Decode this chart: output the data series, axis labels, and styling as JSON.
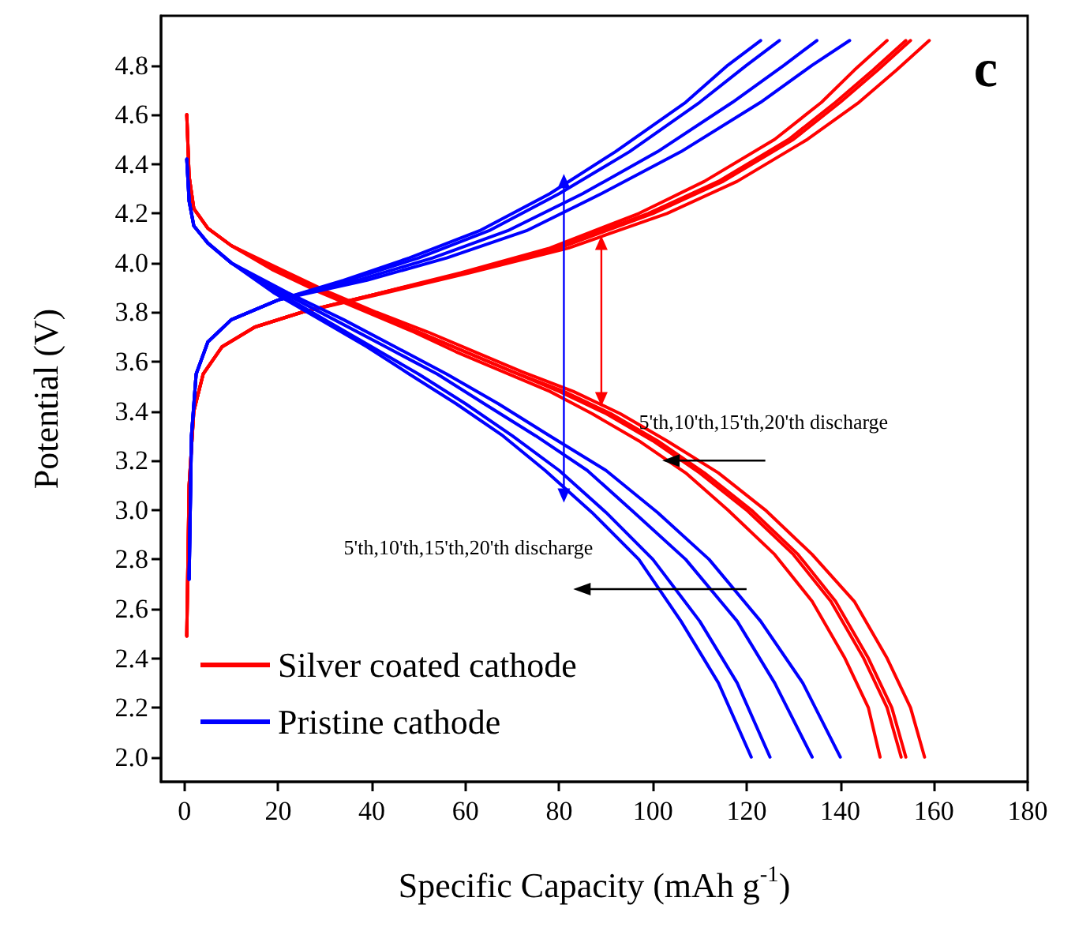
{
  "chart_data": {
    "type": "line",
    "title": "c",
    "xlabel": "Specific Capacity (mAh g$^{-1}$)",
    "ylabel": "Potential (V)",
    "annotations": [
      "5'th,10'th,15'th,20'th discharge",
      "5'th,10'th,15'th,20'th discharge"
    ],
    "xlim": [
      -5,
      180
    ],
    "xticks": [
      0,
      20,
      40,
      60,
      80,
      100,
      120,
      140,
      160,
      180
    ],
    "ylim": [
      1.9,
      5.0
    ],
    "yticks": [
      {
        "value": 2,
        "label": "2.0"
      },
      2.2,
      2.4,
      2.6,
      2.8,
      {
        "value": 3,
        "label": "3.0"
      },
      3.2,
      3.4,
      3.6,
      3.8,
      {
        "value": 4,
        "label": "4.0"
      },
      4.2,
      4.4,
      4.6,
      4.8
    ],
    "grid": false,
    "legend": "bottom left",
    "marker": "none",
    "line_style": "solid",
    "series": [
      {
        "name": "Silver coated cathode",
        "color": "#ff0000",
        "x": [
          0.5,
          1,
          2,
          4,
          8,
          15,
          25,
          40,
          59,
          78,
          97,
          111,
          126,
          136,
          143,
          150
        ],
        "values": [
          2.49,
          3.1,
          3.4,
          3.55,
          3.66,
          3.74,
          3.8,
          3.87,
          3.96,
          4.06,
          4.2,
          4.33,
          4.5,
          4.65,
          4.78,
          4.9
        ]
      },
      {
        "color": "#ff0000",
        "x": [
          0.5,
          1,
          2,
          4,
          8,
          15,
          25,
          40,
          60,
          79,
          99,
          114,
          129,
          139,
          147,
          154
        ],
        "values": [
          2.49,
          3.1,
          3.4,
          3.55,
          3.66,
          3.74,
          3.8,
          3.87,
          3.96,
          4.06,
          4.2,
          4.33,
          4.5,
          4.65,
          4.78,
          4.9
        ]
      },
      {
        "color": "#ff0000",
        "x": [
          0.5,
          1,
          2,
          4,
          8,
          15,
          25,
          40,
          60,
          80,
          100,
          115,
          130,
          140,
          148,
          155
        ],
        "values": [
          2.49,
          3.1,
          3.4,
          3.55,
          3.66,
          3.74,
          3.8,
          3.87,
          3.96,
          4.06,
          4.2,
          4.33,
          4.5,
          4.65,
          4.78,
          4.9
        ]
      },
      {
        "color": "#ff0000",
        "x": [
          0.5,
          1,
          2,
          4,
          8,
          15,
          25,
          41,
          61,
          82,
          103,
          118,
          133,
          144,
          152,
          159
        ],
        "values": [
          2.49,
          3.1,
          3.4,
          3.55,
          3.66,
          3.74,
          3.8,
          3.87,
          3.96,
          4.06,
          4.2,
          4.33,
          4.5,
          4.65,
          4.78,
          4.9
        ]
      },
      {
        "color": "#ff0000",
        "x": [
          0.5,
          1,
          2,
          5,
          10,
          19,
          29,
          39,
          49,
          58,
          68,
          78,
          87,
          97,
          107,
          116,
          126,
          134,
          141,
          146,
          148.5
        ],
        "values": [
          4.6,
          4.35,
          4.22,
          4.14,
          4.07,
          3.97,
          3.88,
          3.8,
          3.72,
          3.64,
          3.56,
          3.48,
          3.39,
          3.28,
          3.15,
          3.0,
          2.82,
          2.63,
          2.4,
          2.2,
          2.0
        ]
      },
      {
        "color": "#ff0000",
        "x": [
          0.5,
          1,
          2,
          5,
          10,
          20,
          30,
          40,
          50,
          60,
          70,
          80,
          90,
          100,
          110,
          120,
          130,
          138,
          145,
          150,
          153
        ],
        "values": [
          4.6,
          4.35,
          4.22,
          4.14,
          4.07,
          3.97,
          3.88,
          3.8,
          3.72,
          3.64,
          3.56,
          3.48,
          3.39,
          3.28,
          3.15,
          3.0,
          2.82,
          2.63,
          2.4,
          2.2,
          2.0
        ]
      },
      {
        "color": "#ff0000",
        "x": [
          0.5,
          1,
          2,
          5,
          10,
          20,
          30,
          40,
          50,
          60,
          70,
          81,
          91,
          101,
          111,
          121,
          131,
          139,
          146,
          151,
          154
        ],
        "values": [
          4.6,
          4.35,
          4.22,
          4.14,
          4.07,
          3.97,
          3.88,
          3.8,
          3.72,
          3.64,
          3.56,
          3.48,
          3.39,
          3.28,
          3.15,
          3.0,
          2.82,
          2.63,
          2.4,
          2.2,
          2.0
        ]
      },
      {
        "color": "#ff0000",
        "x": [
          0.5,
          1,
          2,
          5,
          10,
          21,
          31,
          41,
          52,
          62,
          72,
          83,
          93,
          103,
          114,
          124,
          134,
          143,
          150,
          155,
          158
        ],
        "values": [
          4.6,
          4.35,
          4.22,
          4.14,
          4.07,
          3.97,
          3.88,
          3.8,
          3.72,
          3.64,
          3.56,
          3.48,
          3.39,
          3.28,
          3.15,
          3.0,
          2.82,
          2.63,
          2.4,
          2.2,
          2.0
        ]
      },
      {
        "name": "Pristine cathode",
        "color": "#0000ff",
        "x": [
          1,
          1.5,
          2.5,
          5,
          10,
          20,
          34,
          48,
          63,
          78,
          92,
          107,
          116,
          123
        ],
        "values": [
          2.72,
          3.3,
          3.55,
          3.68,
          3.77,
          3.85,
          3.93,
          4.02,
          4.13,
          4.28,
          4.45,
          4.65,
          4.8,
          4.9
        ]
      },
      {
        "color": "#0000ff",
        "x": [
          1,
          1.5,
          2.5,
          5,
          10,
          20,
          35,
          50,
          65,
          80,
          95,
          110,
          120,
          127
        ],
        "values": [
          2.72,
          3.3,
          3.55,
          3.68,
          3.77,
          3.85,
          3.93,
          4.02,
          4.13,
          4.28,
          4.45,
          4.65,
          4.8,
          4.9
        ]
      },
      {
        "color": "#0000ff",
        "x": [
          1,
          1.5,
          2.5,
          5,
          10,
          20,
          37,
          53,
          69,
          85,
          101,
          117,
          128,
          135
        ],
        "values": [
          2.72,
          3.3,
          3.55,
          3.68,
          3.77,
          3.85,
          3.93,
          4.02,
          4.13,
          4.28,
          4.45,
          4.65,
          4.8,
          4.9
        ]
      },
      {
        "color": "#0000ff",
        "x": [
          1,
          1.5,
          2.5,
          5,
          10,
          20,
          39,
          56,
          73,
          89,
          106,
          123,
          134,
          142
        ],
        "values": [
          2.72,
          3.3,
          3.55,
          3.68,
          3.77,
          3.85,
          3.93,
          4.02,
          4.13,
          4.28,
          4.45,
          4.65,
          4.8,
          4.9
        ]
      },
      {
        "color": "#0000ff",
        "x": [
          0.5,
          1,
          2,
          5,
          10,
          19,
          29,
          39,
          48,
          58,
          68,
          77,
          87,
          97,
          106,
          114,
          121
        ],
        "values": [
          4.42,
          4.25,
          4.15,
          4.08,
          4.0,
          3.88,
          3.77,
          3.66,
          3.55,
          3.43,
          3.3,
          3.16,
          2.99,
          2.8,
          2.55,
          2.3,
          2.0
        ]
      },
      {
        "color": "#0000ff",
        "x": [
          0.5,
          1,
          2,
          5,
          10,
          20,
          30,
          40,
          50,
          60,
          70,
          80,
          90,
          100,
          110,
          118,
          125
        ],
        "values": [
          4.42,
          4.25,
          4.15,
          4.08,
          4.0,
          3.88,
          3.77,
          3.66,
          3.55,
          3.43,
          3.3,
          3.16,
          2.99,
          2.8,
          2.55,
          2.3,
          2.0
        ]
      },
      {
        "color": "#0000ff",
        "x": [
          0.5,
          1,
          2,
          5,
          10,
          21,
          32,
          43,
          54,
          64,
          75,
          86,
          96,
          107,
          118,
          126,
          134
        ],
        "values": [
          4.42,
          4.25,
          4.15,
          4.08,
          4.0,
          3.88,
          3.77,
          3.66,
          3.55,
          3.43,
          3.3,
          3.16,
          2.99,
          2.8,
          2.55,
          2.3,
          2.0
        ]
      },
      {
        "color": "#0000ff",
        "x": [
          0.5,
          1,
          2,
          5,
          10,
          22,
          34,
          45,
          56,
          67,
          78,
          90,
          101,
          112,
          123,
          132,
          140
        ],
        "values": [
          4.42,
          4.25,
          4.15,
          4.08,
          4.0,
          3.88,
          3.77,
          3.66,
          3.55,
          3.43,
          3.3,
          3.16,
          2.99,
          2.8,
          2.55,
          2.3,
          2.0
        ]
      }
    ]
  }
}
